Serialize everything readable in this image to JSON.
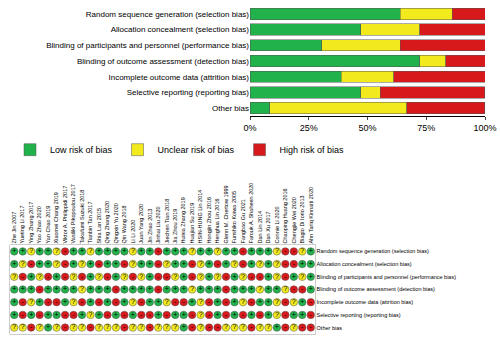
{
  "chart_data": [
    {
      "type": "bar",
      "orientation": "horizontal",
      "stacked": true,
      "grid": false,
      "legend": "bottom",
      "categories": [
        "Random sequence generation (selection bias)",
        "Allocation concealment (selection bias)",
        "Blinding of participants and personnel (performance bias)",
        "Blinding of outcome assessment (detection bias)",
        "Incomplete outcome data (attrition bias)",
        "Selective reporting (reporting bias)",
        "Other bias"
      ],
      "series": [
        {
          "name": "Low risk of bias",
          "color": "#21b24b",
          "values": [
            63.9,
            47.2,
            30.6,
            72.2,
            38.9,
            47.2,
            8.3
          ]
        },
        {
          "name": "Unclear risk of bias",
          "color": "#f2ea1d",
          "values": [
            22.2,
            25,
            33.3,
            11.1,
            22.2,
            8.3,
            58.3
          ]
        },
        {
          "name": "High risk of bias",
          "color": "#d7191c",
          "values": [
            13.9,
            27.8,
            36.1,
            16.7,
            38.9,
            44.4,
            33.3
          ]
        }
      ],
      "xlim": [
        0,
        100
      ],
      "xticks": [
        {
          "value": 0,
          "label": "0%"
        },
        {
          "value": 25,
          "label": "25%"
        },
        {
          "value": 50,
          "label": "50%"
        },
        {
          "value": 75,
          "label": "75%"
        },
        {
          "value": 100,
          "label": "100%"
        }
      ]
    },
    {
      "type": "grid",
      "x": [
        "Zhe Jin 2007",
        "Yueting Li 2017",
        "Ying Zhang 2017",
        "Yao Zhao 2020",
        "Yan Chao 2019",
        "Xiaomei Chang 2019",
        "Viktor A. Philippidi 2017",
        "Vasiliki Pikopoulou 2017",
        "Takafumi Suzuki 2018",
        "Tianbin Tan 2017",
        "Shia Lan 2015",
        "Qing Zhang 2020",
        "Qingxin Yu 2020",
        "Qin Wang 2018",
        "Li Li 2020",
        "Juan Yang 2020",
        "Jin Zhao 2013",
        "Jinhai Liu 2020",
        "Jiechen Tian 2018",
        "Jia Zhou 2019",
        "Huixia Zhang 2019",
        "Huajian Su 2019",
        "HSIN-HUNG Lin 2014",
        "Hongjin Zhou 2016",
        "Henghua Lin 2016",
        "Glenn M. Chertow 1999",
        "Fumihiko Koiwa 2005",
        "Fangbao Gu 2021",
        "Farouk A. Shaheen 2020",
        "Dan Lin 2014",
        "Dan Xu 2017",
        "Connie Li 2020",
        "Chaoping Huang 2016",
        "Chengjie Wei 2020",
        "Biagio Di Iorio 2013",
        "Ahn Tariq Kinnaiti 2020"
      ],
      "categories": [
        "Random sequence generation (selection bias)",
        "Allocation concealment (selection bias)",
        "Blinding of participants and personnel (performance bias)",
        "Blinding of outcome assessment (detection bias)",
        "Incomplete outcome data (attrition bias)",
        "Selective reporting (reporting bias)",
        "Other bias"
      ],
      "colors": {
        "+": "#21b24b",
        "?": "#f2ea1d",
        "-": "#d7191c"
      },
      "cells": [
        [
          "+",
          "+",
          "?",
          "+",
          "+",
          "?",
          "-",
          "+",
          "+",
          "?",
          "+",
          "+",
          "+",
          "+",
          "?",
          "+",
          "+",
          "-",
          "+",
          "+",
          "+",
          "?",
          "+",
          "+",
          "?",
          "+",
          "+",
          "-",
          "+",
          "+",
          "+",
          "?",
          "-",
          "-",
          "?",
          "+"
        ],
        [
          "+",
          "?",
          "-",
          "+",
          "+",
          "?",
          "-",
          "+",
          "?",
          "+",
          "-",
          "+",
          "+",
          "-",
          "?",
          "+",
          "+",
          "-",
          "?",
          "+",
          "+",
          "-",
          "?",
          "+",
          "-",
          "+",
          "?",
          "-",
          "+",
          "?",
          "+",
          "?",
          "-",
          "-",
          "+",
          "+"
        ],
        [
          "?",
          "-",
          "+",
          "?",
          "-",
          "+",
          "-",
          "?",
          "-",
          "+",
          "?",
          "-",
          "+",
          "?",
          "-",
          "?",
          "+",
          "-",
          "-",
          "?",
          "+",
          "-",
          "?",
          "+",
          "?",
          "-",
          "+",
          "?",
          "-",
          "-",
          "+",
          "?",
          "-",
          "+",
          "?",
          "+"
        ],
        [
          "+",
          "+",
          "+",
          "-",
          "+",
          "+",
          "+",
          "+",
          "?",
          "+",
          "+",
          "+",
          "-",
          "+",
          "+",
          "+",
          "+",
          "-",
          "+",
          "+",
          "+",
          "?",
          "+",
          "+",
          "+",
          "-",
          "+",
          "+",
          "+",
          "?",
          "+",
          "+",
          "?",
          "-",
          "-",
          "+"
        ],
        [
          "+",
          "-",
          "?",
          "+",
          "-",
          "-",
          "+",
          "?",
          "-",
          "+",
          "-",
          "+",
          "-",
          "+",
          "?",
          "-",
          "+",
          "+",
          "?",
          "-",
          "-",
          "+",
          "?",
          "-",
          "+",
          "-",
          "+",
          "?",
          "-",
          "+",
          "+",
          "?",
          "-",
          "?",
          "+",
          "-"
        ],
        [
          "+",
          "-",
          "+",
          "-",
          "+",
          "+",
          "-",
          "-",
          "+",
          "?",
          "+",
          "-",
          "+",
          "-",
          "+",
          "-",
          "-",
          "+",
          "-",
          "+",
          "+",
          "-",
          "?",
          "-",
          "+",
          "-",
          "+",
          "-",
          "+",
          "-",
          "+",
          "?",
          "-",
          "+",
          "+",
          "-"
        ],
        [
          "?",
          "?",
          "-",
          "?",
          "+",
          "?",
          "-",
          "?",
          "?",
          "-",
          "?",
          "?",
          "?",
          "-",
          "?",
          "?",
          "-",
          "?",
          "?",
          "?",
          "+",
          "-",
          "?",
          "-",
          "-",
          "?",
          "?",
          "?",
          "-",
          "?",
          "?",
          "+",
          "-",
          "?",
          "-",
          "-"
        ]
      ]
    }
  ]
}
